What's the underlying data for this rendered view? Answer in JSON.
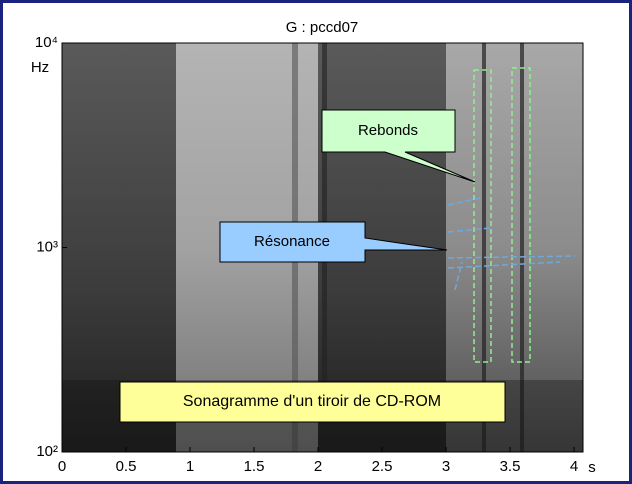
{
  "chart_data": {
    "type": "spectrogram",
    "title": "G : pccd07",
    "xlabel": "s",
    "ylabel": "Hz",
    "xlim": [
      0,
      4.07
    ],
    "ylim": [
      100,
      10000
    ],
    "log_y": true,
    "xticks": [
      0,
      0.5,
      1,
      1.5,
      2,
      2.5,
      3,
      3.5,
      4
    ],
    "yticks": [
      {
        "value": 100,
        "label": "10²"
      },
      {
        "value": 1000,
        "label": "10³"
      },
      {
        "value": 10000,
        "label": "10⁴"
      }
    ],
    "annotations": [
      "Rebonds",
      "Résonance",
      "Sonagramme d'un tiroir de CD-ROM"
    ]
  }
}
